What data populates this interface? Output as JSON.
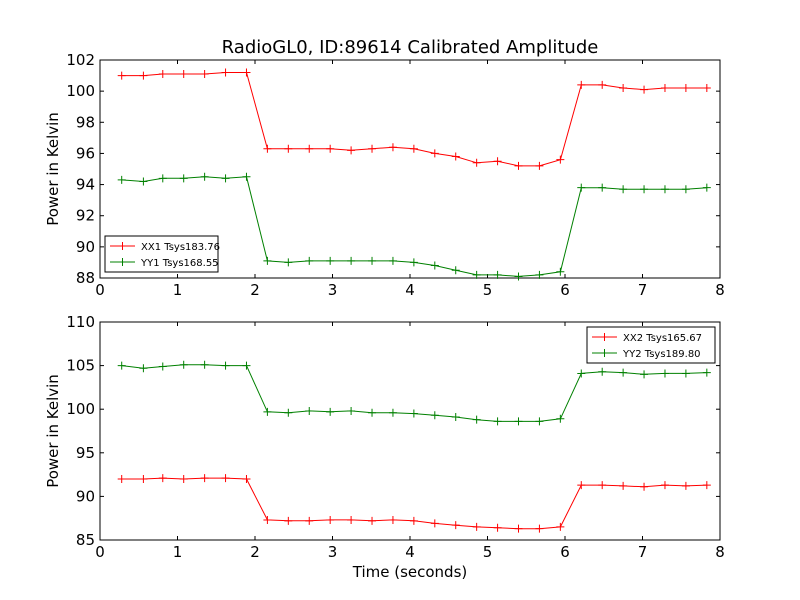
{
  "figure": {
    "title": "RadioGL0, ID:89614 Calibrated Amplitude"
  },
  "chart_data": [
    {
      "type": "line",
      "title": "RadioGL0, ID:89614 Calibrated Amplitude",
      "xlabel": "",
      "ylabel": "Power in Kelvin",
      "xlim": [
        0,
        8
      ],
      "ylim": [
        88,
        102
      ],
      "xticks": [
        0,
        1,
        2,
        3,
        4,
        5,
        6,
        7,
        8
      ],
      "yticks": [
        88,
        90,
        92,
        94,
        96,
        98,
        100,
        102
      ],
      "grid": false,
      "legend_position": "lower-left",
      "x": [
        0.28,
        0.56,
        0.81,
        1.08,
        1.35,
        1.62,
        1.89,
        2.16,
        2.43,
        2.7,
        2.97,
        3.24,
        3.51,
        3.78,
        4.05,
        4.32,
        4.59,
        4.86,
        5.13,
        5.4,
        5.67,
        5.94,
        6.21,
        6.48,
        6.75,
        7.02,
        7.29,
        7.56,
        7.83
      ],
      "series": [
        {
          "name": "XX1 Tsys183.76",
          "color": "#ff0000",
          "values": [
            101.0,
            101.0,
            101.1,
            101.1,
            101.1,
            101.2,
            101.2,
            96.3,
            96.3,
            96.3,
            96.3,
            96.2,
            96.3,
            96.4,
            96.3,
            96.0,
            95.8,
            95.4,
            95.5,
            95.2,
            95.2,
            95.6,
            100.4,
            100.4,
            100.2,
            100.1,
            100.2,
            100.2,
            100.2
          ]
        },
        {
          "name": "YY1 Tsys168.55",
          "color": "#008000",
          "values": [
            94.3,
            94.2,
            94.4,
            94.4,
            94.5,
            94.4,
            94.5,
            89.1,
            89.0,
            89.1,
            89.1,
            89.1,
            89.1,
            89.1,
            89.0,
            88.8,
            88.5,
            88.2,
            88.2,
            88.1,
            88.2,
            88.4,
            93.8,
            93.8,
            93.7,
            93.7,
            93.7,
            93.7,
            93.8
          ]
        }
      ]
    },
    {
      "type": "line",
      "title": "",
      "xlabel": "Time (seconds)",
      "ylabel": "Power in Kelvin",
      "xlim": [
        0,
        8
      ],
      "ylim": [
        85,
        110
      ],
      "xticks": [
        0,
        1,
        2,
        3,
        4,
        5,
        6,
        7,
        8
      ],
      "yticks": [
        85,
        90,
        95,
        100,
        105,
        110
      ],
      "grid": false,
      "legend_position": "upper-right",
      "x": [
        0.28,
        0.56,
        0.81,
        1.08,
        1.35,
        1.62,
        1.89,
        2.16,
        2.43,
        2.7,
        2.97,
        3.24,
        3.51,
        3.78,
        4.05,
        4.32,
        4.59,
        4.86,
        5.13,
        5.4,
        5.67,
        5.94,
        6.21,
        6.48,
        6.75,
        7.02,
        7.29,
        7.56,
        7.83
      ],
      "series": [
        {
          "name": "XX2 Tsys165.67",
          "color": "#ff0000",
          "values": [
            92.0,
            92.0,
            92.1,
            92.0,
            92.1,
            92.1,
            92.0,
            87.3,
            87.2,
            87.2,
            87.3,
            87.3,
            87.2,
            87.3,
            87.2,
            86.9,
            86.7,
            86.5,
            86.4,
            86.3,
            86.3,
            86.5,
            91.3,
            91.3,
            91.2,
            91.1,
            91.3,
            91.2,
            91.3
          ]
        },
        {
          "name": "YY2 Tsys189.80",
          "color": "#008000",
          "values": [
            105.0,
            104.7,
            104.9,
            105.1,
            105.1,
            105.0,
            105.0,
            99.7,
            99.6,
            99.8,
            99.7,
            99.8,
            99.6,
            99.6,
            99.5,
            99.3,
            99.1,
            98.8,
            98.6,
            98.6,
            98.6,
            98.9,
            104.1,
            104.3,
            104.2,
            104.0,
            104.1,
            104.1,
            104.2
          ]
        }
      ]
    }
  ]
}
